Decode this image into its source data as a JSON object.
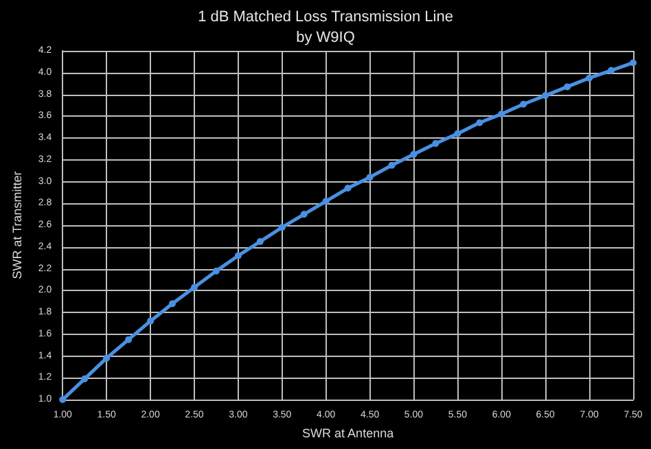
{
  "chart_data": {
    "type": "line",
    "title": "1 dB Matched Loss Transmission Line",
    "subtitle": "by W9IQ",
    "xlabel": "SWR at Antenna",
    "ylabel": "SWR at Transmitter",
    "x": [
      1,
      1.25,
      1.5,
      1.75,
      2,
      2.25,
      2.5,
      2.75,
      3,
      3.25,
      3.5,
      3.75,
      4,
      4.25,
      4.5,
      4.75,
      5,
      5.25,
      5.5,
      5.75,
      6,
      6.25,
      6.5,
      6.75,
      7,
      7.25,
      7.5
    ],
    "series": [
      {
        "color": "#4a90e2",
        "values": [
          1.0,
          1.19,
          1.38,
          1.55,
          1.72,
          1.88,
          2.03,
          2.18,
          2.32,
          2.45,
          2.58,
          2.7,
          2.82,
          2.94,
          3.04,
          3.15,
          3.25,
          3.35,
          3.44,
          3.54,
          3.62,
          3.71,
          3.79,
          3.87,
          3.95,
          4.02,
          4.09
        ]
      }
    ],
    "xlim": [
      1,
      7.5
    ],
    "xticks": [
      {
        "value": 1,
        "label": "1.00"
      },
      {
        "value": 1.5,
        "label": "1.50"
      },
      {
        "value": 2,
        "label": "2.00"
      },
      {
        "value": 2.5,
        "label": "2.50"
      },
      {
        "value": 3,
        "label": "3.00"
      },
      {
        "value": 3.5,
        "label": "3.50"
      },
      {
        "value": 4,
        "label": "4.00"
      },
      {
        "value": 4.5,
        "label": "4.50"
      },
      {
        "value": 5,
        "label": "5.00"
      },
      {
        "value": 5.5,
        "label": "5.50"
      },
      {
        "value": 6,
        "label": "6.00"
      },
      {
        "value": 6.5,
        "label": "6.50"
      },
      {
        "value": 7,
        "label": "7.00"
      },
      {
        "value": 7.5,
        "label": "7.50"
      }
    ],
    "ylim": [
      1,
      4.2
    ],
    "yticks": [
      {
        "value": 1,
        "label": "1.0"
      },
      {
        "value": 1.2,
        "label": "1.2"
      },
      {
        "value": 1.4,
        "label": "1.4"
      },
      {
        "value": 1.6,
        "label": "1.6"
      },
      {
        "value": 1.8,
        "label": "1.8"
      },
      {
        "value": 2,
        "label": "2.0"
      },
      {
        "value": 2.2,
        "label": "2.2"
      },
      {
        "value": 2.4,
        "label": "2.4"
      },
      {
        "value": 2.6,
        "label": "2.6"
      },
      {
        "value": 2.8,
        "label": "2.8"
      },
      {
        "value": 3,
        "label": "3.0"
      },
      {
        "value": 3.2,
        "label": "3.2"
      },
      {
        "value": 3.4,
        "label": "3.4"
      },
      {
        "value": 3.6,
        "label": "3.6"
      },
      {
        "value": 3.8,
        "label": "3.8"
      },
      {
        "value": 4,
        "label": "4.0"
      },
      {
        "value": 4.2,
        "label": "4.2"
      }
    ],
    "grid": true,
    "marker": "circle",
    "line_style": "solid"
  }
}
